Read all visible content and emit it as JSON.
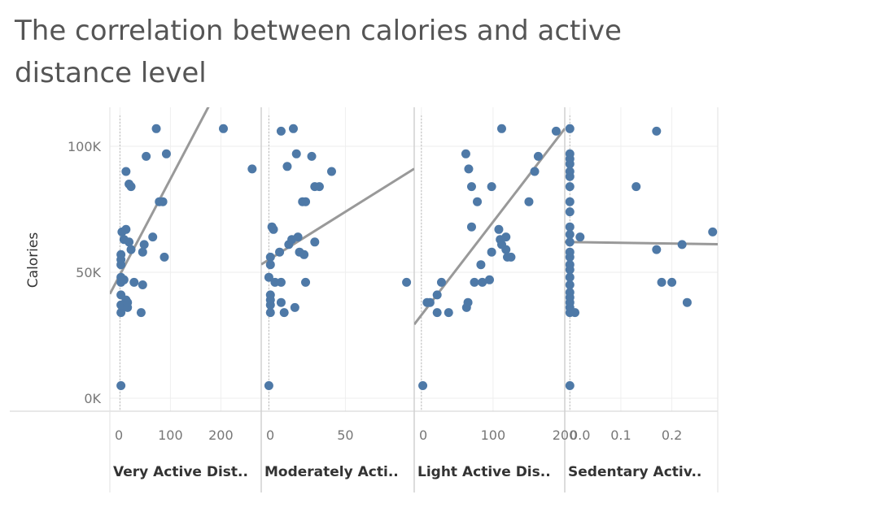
{
  "chart_data": {
    "type": "scatter",
    "title": "The correlation between calories and active distance level",
    "ylabel": "Calories",
    "ylim": [
      0,
      110000
    ],
    "y_ticks": [
      {
        "value": 0,
        "label": "0K"
      },
      {
        "value": 50000,
        "label": "50K"
      },
      {
        "value": 100000,
        "label": "100K"
      }
    ],
    "colors": {
      "points": "#4e79a7",
      "trend": "#999999",
      "grid": "#eeeeee",
      "axis": "#d0d0d0"
    },
    "trend_lines": true,
    "panels": [
      {
        "xlabel": "Very Active Dist..",
        "xlim": [
          -20,
          280
        ],
        "x_ticks": [
          {
            "value": 0,
            "label": "0"
          },
          {
            "value": 100,
            "label": "100"
          },
          {
            "value": 200,
            "label": "200"
          }
        ],
        "trend": {
          "intercept": 49000,
          "slope": 380
        },
        "points": [
          [
            2,
            5000
          ],
          [
            2,
            34000
          ],
          [
            2,
            37000
          ],
          [
            2,
            41000
          ],
          [
            2,
            46000
          ],
          [
            2,
            48000
          ],
          [
            2,
            53000
          ],
          [
            2,
            55000
          ],
          [
            2,
            57000
          ],
          [
            4,
            66000
          ],
          [
            8,
            47000
          ],
          [
            8,
            63000
          ],
          [
            12,
            67000
          ],
          [
            12,
            39000
          ],
          [
            15,
            36000
          ],
          [
            15,
            38000
          ],
          [
            18,
            62000
          ],
          [
            22,
            59000
          ],
          [
            28,
            46000
          ],
          [
            42,
            34000
          ],
          [
            45,
            58000
          ],
          [
            45,
            45000
          ],
          [
            48,
            61000
          ],
          [
            52,
            96000
          ],
          [
            65,
            64000
          ],
          [
            72,
            107000
          ],
          [
            78,
            78000
          ],
          [
            85,
            78000
          ],
          [
            88,
            56000
          ],
          [
            92,
            97000
          ],
          [
            205,
            107000
          ],
          [
            262,
            91000
          ],
          [
            12,
            90000
          ],
          [
            18,
            85000
          ],
          [
            22,
            84000
          ]
        ]
      },
      {
        "xlabel": "Moderately Acti..",
        "xlim": [
          -5,
          95
        ],
        "x_ticks": [
          {
            "value": 0,
            "label": "0"
          },
          {
            "value": 50,
            "label": "50"
          }
        ],
        "trend": {
          "intercept": 55000,
          "slope": 380
        },
        "points": [
          [
            0,
            5000
          ],
          [
            0,
            48000
          ],
          [
            1,
            34000
          ],
          [
            1,
            37000
          ],
          [
            1,
            39000
          ],
          [
            1,
            41000
          ],
          [
            1,
            53000
          ],
          [
            1,
            56000
          ],
          [
            2,
            68000
          ],
          [
            3,
            67000
          ],
          [
            4,
            46000
          ],
          [
            7,
            58000
          ],
          [
            8,
            38000
          ],
          [
            8,
            106000
          ],
          [
            8,
            46000
          ],
          [
            10,
            34000
          ],
          [
            12,
            92000
          ],
          [
            13,
            61000
          ],
          [
            15,
            63000
          ],
          [
            16,
            107000
          ],
          [
            17,
            36000
          ],
          [
            18,
            97000
          ],
          [
            19,
            64000
          ],
          [
            20,
            58000
          ],
          [
            22,
            78000
          ],
          [
            23,
            57000
          ],
          [
            24,
            78000
          ],
          [
            24,
            46000
          ],
          [
            28,
            96000
          ],
          [
            30,
            84000
          ],
          [
            30,
            62000
          ],
          [
            33,
            84000
          ],
          [
            41,
            90000
          ],
          [
            90,
            46000
          ]
        ]
      },
      {
        "xlabel": "Light Active Dis..",
        "xlim": [
          -10,
          200
        ],
        "x_ticks": [
          {
            "value": 0,
            "label": "0"
          },
          {
            "value": 100,
            "label": "100"
          },
          {
            "value": 200,
            "label": "200"
          }
        ],
        "trend": {
          "intercept": 33000,
          "slope": 370
        },
        "points": [
          [
            2,
            5000
          ],
          [
            8,
            38000
          ],
          [
            12,
            38000
          ],
          [
            22,
            41000
          ],
          [
            22,
            34000
          ],
          [
            28,
            46000
          ],
          [
            38,
            34000
          ],
          [
            62,
            97000
          ],
          [
            63,
            36000
          ],
          [
            65,
            38000
          ],
          [
            66,
            91000
          ],
          [
            70,
            68000
          ],
          [
            70,
            84000
          ],
          [
            74,
            46000
          ],
          [
            78,
            78000
          ],
          [
            83,
            53000
          ],
          [
            85,
            46000
          ],
          [
            95,
            47000
          ],
          [
            98,
            58000
          ],
          [
            98,
            84000
          ],
          [
            108,
            67000
          ],
          [
            110,
            63000
          ],
          [
            112,
            107000
          ],
          [
            112,
            61000
          ],
          [
            118,
            59000
          ],
          [
            118,
            64000
          ],
          [
            120,
            56000
          ],
          [
            125,
            56000
          ],
          [
            150,
            78000
          ],
          [
            158,
            90000
          ],
          [
            163,
            96000
          ],
          [
            188,
            106000
          ]
        ]
      },
      {
        "xlabel": "Sedentary Activ..",
        "xlim": [
          -0.01,
          0.29
        ],
        "x_ticks": [
          {
            "value": 0,
            "label": "0.0"
          },
          {
            "value": 0.1,
            "label": "0.1"
          },
          {
            "value": 0.2,
            "label": "0.2"
          }
        ],
        "trend": {
          "intercept": 62000,
          "slope": -3000
        },
        "points": [
          [
            0,
            5000
          ],
          [
            0,
            34000
          ],
          [
            0,
            36000
          ],
          [
            0,
            38000
          ],
          [
            0,
            40000
          ],
          [
            0,
            42000
          ],
          [
            0,
            45000
          ],
          [
            0,
            48000
          ],
          [
            0,
            51000
          ],
          [
            0,
            53000
          ],
          [
            0,
            56000
          ],
          [
            0,
            58000
          ],
          [
            0,
            62000
          ],
          [
            0,
            65000
          ],
          [
            0,
            68000
          ],
          [
            0,
            74000
          ],
          [
            0,
            78000
          ],
          [
            0,
            84000
          ],
          [
            0,
            88000
          ],
          [
            0,
            90000
          ],
          [
            0,
            93000
          ],
          [
            0,
            95000
          ],
          [
            0,
            97000
          ],
          [
            0,
            107000
          ],
          [
            0.01,
            34000
          ],
          [
            0.02,
            64000
          ],
          [
            0.13,
            84000
          ],
          [
            0.17,
            59000
          ],
          [
            0.17,
            106000
          ],
          [
            0.18,
            46000
          ],
          [
            0.2,
            46000
          ],
          [
            0.22,
            61000
          ],
          [
            0.23,
            38000
          ],
          [
            0.28,
            66000
          ]
        ]
      }
    ]
  }
}
